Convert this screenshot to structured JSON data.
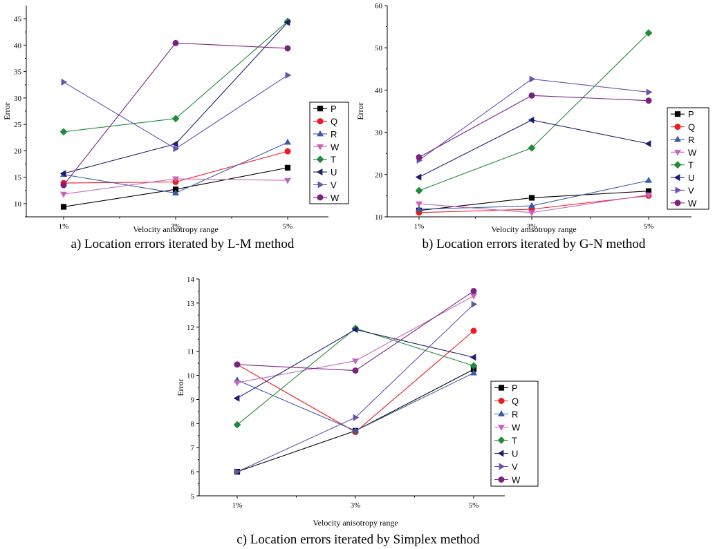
{
  "chart_data": [
    {
      "type": "line",
      "caption": "a) Location errors iterated by L-M method",
      "xlabel": "Velocity anisotropy range",
      "ylabel": "Error",
      "categories": [
        "1%",
        "3%",
        "5%"
      ],
      "ylim": [
        7.5,
        47.5
      ],
      "yticks": [
        10,
        15,
        20,
        25,
        30,
        35,
        40,
        45
      ],
      "legend_position": "right",
      "series": [
        {
          "name": "P",
          "color": "#000000",
          "marker": "square",
          "values": [
            9.4,
            12.7,
            16.8
          ]
        },
        {
          "name": "Q",
          "color": "#ee1c24",
          "marker": "circle",
          "values": [
            13.9,
            14.1,
            19.9
          ]
        },
        {
          "name": "R",
          "color": "#3a5ba8",
          "marker": "triangle-up",
          "values": [
            15.5,
            12.0,
            21.6
          ]
        },
        {
          "name": "W",
          "color": "#c765c0",
          "marker": "triangle-down",
          "values": [
            11.8,
            14.7,
            14.4
          ]
        },
        {
          "name": "T",
          "color": "#228b3a",
          "marker": "diamond",
          "values": [
            23.6,
            26.1,
            44.5
          ]
        },
        {
          "name": "U",
          "color": "#1c1f70",
          "marker": "triangle-left",
          "values": [
            15.7,
            21.3,
            44.3
          ]
        },
        {
          "name": "V",
          "color": "#6a50b0",
          "marker": "triangle-right",
          "values": [
            33.0,
            20.4,
            34.3
          ]
        },
        {
          "name": "W",
          "color": "#7b2281",
          "marker": "circle",
          "values": [
            13.5,
            40.4,
            39.4
          ]
        }
      ]
    },
    {
      "type": "line",
      "caption": "b) Location errors iterated by G-N method",
      "xlabel": "Velocity anisotropy range",
      "ylabel": "Error",
      "categories": [
        "1%",
        "3%",
        "5%"
      ],
      "ylim": [
        10,
        60
      ],
      "yticks": [
        10,
        20,
        30,
        40,
        50,
        60
      ],
      "legend_position": "right",
      "series": [
        {
          "name": "P",
          "color": "#000000",
          "marker": "square",
          "values": [
            11.5,
            14.5,
            16.1
          ]
        },
        {
          "name": "Q",
          "color": "#ee1c24",
          "marker": "circle",
          "values": [
            11.0,
            11.8,
            15.0
          ]
        },
        {
          "name": "R",
          "color": "#3a5ba8",
          "marker": "triangle-up",
          "values": [
            11.8,
            12.6,
            18.6
          ]
        },
        {
          "name": "W",
          "color": "#c765c0",
          "marker": "triangle-down",
          "values": [
            13.1,
            11.0,
            15.2
          ]
        },
        {
          "name": "T",
          "color": "#228b3a",
          "marker": "diamond",
          "values": [
            16.2,
            26.3,
            53.5
          ]
        },
        {
          "name": "U",
          "color": "#1c1f70",
          "marker": "triangle-left",
          "values": [
            19.4,
            32.9,
            27.3
          ]
        },
        {
          "name": "V",
          "color": "#6a50b0",
          "marker": "triangle-right",
          "values": [
            23.4,
            42.6,
            39.5
          ]
        },
        {
          "name": "W",
          "color": "#7b2281",
          "marker": "circle",
          "values": [
            24.1,
            38.7,
            37.5
          ]
        }
      ]
    },
    {
      "type": "line",
      "caption": "c) Location errors iterated by Simplex method",
      "xlabel": "Velocity anisotropy range",
      "ylabel": "Error",
      "categories": [
        "1%",
        "3%",
        "5%"
      ],
      "ylim": [
        5,
        14
      ],
      "yticks": [
        5,
        6,
        7,
        8,
        9,
        10,
        11,
        12,
        13,
        14
      ],
      "legend_position": "right",
      "series": [
        {
          "name": "P",
          "color": "#000000",
          "marker": "square",
          "values": [
            6.0,
            7.7,
            10.25
          ]
        },
        {
          "name": "Q",
          "color": "#ee1c24",
          "marker": "circle",
          "values": [
            10.45,
            7.65,
            11.85
          ]
        },
        {
          "name": "R",
          "color": "#3a5ba8",
          "marker": "triangle-up",
          "values": [
            9.8,
            7.7,
            10.1
          ]
        },
        {
          "name": "W",
          "color": "#c765c0",
          "marker": "triangle-down",
          "values": [
            9.7,
            10.6,
            13.3
          ]
        },
        {
          "name": "T",
          "color": "#228b3a",
          "marker": "diamond",
          "values": [
            7.95,
            11.95,
            10.4
          ]
        },
        {
          "name": "U",
          "color": "#1c1f70",
          "marker": "triangle-left",
          "values": [
            9.05,
            11.9,
            10.75
          ]
        },
        {
          "name": "V",
          "color": "#6a50b0",
          "marker": "triangle-right",
          "values": [
            6.0,
            8.25,
            12.95
          ]
        },
        {
          "name": "W",
          "color": "#7b2281",
          "marker": "circle",
          "values": [
            10.45,
            10.2,
            13.5
          ]
        }
      ]
    }
  ]
}
